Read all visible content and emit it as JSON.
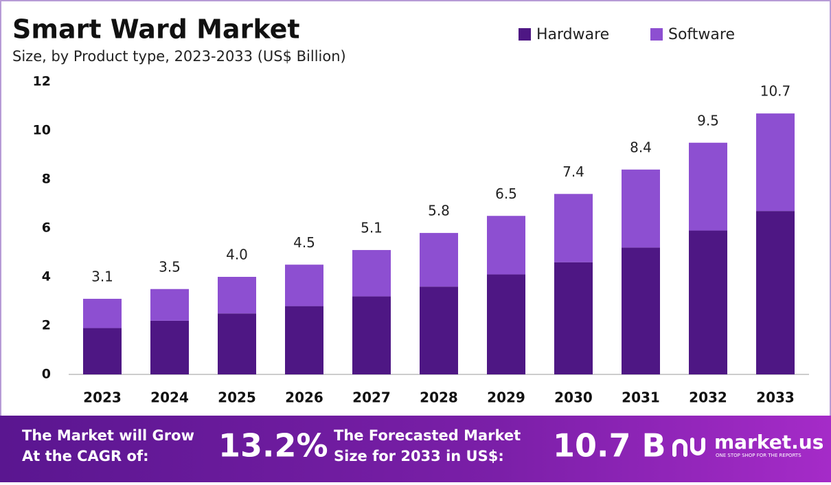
{
  "chart_data": {
    "type": "stacked-bar",
    "title": "Smart Ward Market",
    "subtitle": "Size, by Product type, 2023-2033 (US$ Billion)",
    "categories": [
      "2023",
      "2024",
      "2025",
      "2026",
      "2027",
      "2028",
      "2029",
      "2030",
      "2031",
      "2032",
      "2033"
    ],
    "series": [
      {
        "name": "Hardware",
        "color": "#4e1784",
        "values": [
          1.9,
          2.2,
          2.5,
          2.8,
          3.2,
          3.6,
          4.1,
          4.6,
          5.2,
          5.9,
          6.7
        ]
      },
      {
        "name": "Software",
        "color": "#8d4fd1",
        "values": [
          1.2,
          1.3,
          1.5,
          1.7,
          1.9,
          2.2,
          2.4,
          2.8,
          3.2,
          3.6,
          4.0
        ]
      }
    ],
    "totals": {
      "values": [
        3.1,
        3.5,
        4,
        4.5,
        5.1,
        5.8,
        6.5,
        7.4,
        8.4,
        9.5,
        10.7
      ],
      "value_labels": [
        "3.1",
        "3.5",
        "4.0",
        "4.5",
        "5.1",
        "5.8",
        "6.5",
        "7.4",
        "8.4",
        "9.5",
        "10.7"
      ]
    },
    "ylim": [
      0,
      12
    ],
    "yticks": [
      0,
      2,
      4,
      6,
      8,
      10,
      12
    ],
    "grid": false,
    "legend": "top-right"
  },
  "footer": {
    "cagr_label": [
      "The Market will Grow",
      "At the CAGR of:"
    ],
    "cagr_value": "13.2%",
    "size_label": [
      "The Forecasted Market",
      "Size for 2033 in US$:"
    ],
    "size_value": "10.7 B",
    "brand": "market.us",
    "tagline": "ONE STOP SHOP FOR THE REPORTS"
  }
}
